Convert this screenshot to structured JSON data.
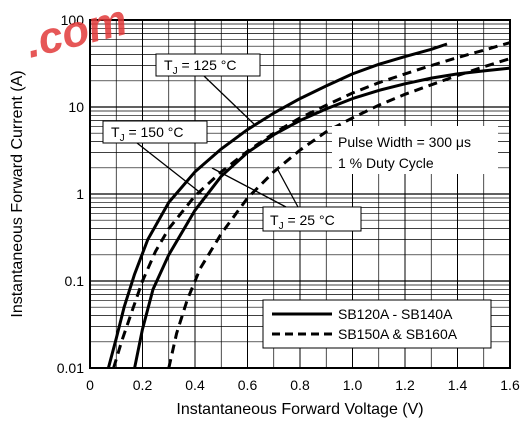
{
  "watermark": ".com",
  "chart_data": {
    "type": "line",
    "title": "",
    "xlabel": "Instantaneous Forward Voltage (V)",
    "ylabel": "Instantaneous Forward Current (A)",
    "xlim": [
      0,
      1.6
    ],
    "ylim": [
      0.01,
      100
    ],
    "y_scale": "log",
    "grid": true,
    "x_ticks": [
      "0",
      "0.2",
      "0.4",
      "0.6",
      "0.8",
      "1.0",
      "1.2",
      "1.4",
      "1.6"
    ],
    "y_ticks": [
      "0.01",
      "0.1",
      "1",
      "10",
      "100"
    ],
    "legend_position": "bottom-right",
    "series": [
      {
        "name": "SB120A - SB140A",
        "style": "solid",
        "condition": "T_J = 125 °C",
        "x": [
          0.07,
          0.1,
          0.13,
          0.17,
          0.22,
          0.3,
          0.4,
          0.5,
          0.6,
          0.7,
          0.8,
          0.9,
          1.0,
          1.1,
          1.2,
          1.3,
          1.36
        ],
        "y": [
          0.01,
          0.022,
          0.05,
          0.12,
          0.3,
          0.8,
          1.8,
          3.3,
          5.5,
          8.5,
          12.5,
          17.5,
          24,
          31,
          38,
          46,
          53
        ]
      },
      {
        "name": "SB120A - SB140A",
        "style": "solid",
        "condition": "T_J = 25 °C",
        "x": [
          0.17,
          0.2,
          0.24,
          0.3,
          0.4,
          0.5,
          0.6,
          0.7,
          0.8,
          0.9,
          1.0,
          1.1,
          1.2,
          1.3,
          1.4,
          1.5,
          1.6
        ],
        "y": [
          0.01,
          0.028,
          0.08,
          0.2,
          0.65,
          1.6,
          3.0,
          4.8,
          7.0,
          9.5,
          12.5,
          15.5,
          18.5,
          21.5,
          24,
          26,
          28
        ]
      },
      {
        "name": "SB150A & SB160A",
        "style": "dashed",
        "condition": "T_J = 150 °C",
        "x": [
          0.09,
          0.12,
          0.16,
          0.2,
          0.25,
          0.3,
          0.4,
          0.5,
          0.6,
          0.7,
          0.8,
          0.9,
          1.0,
          1.1,
          1.2,
          1.3,
          1.4,
          1.5,
          1.6
        ],
        "y": [
          0.01,
          0.02,
          0.045,
          0.1,
          0.22,
          0.4,
          0.95,
          1.8,
          3.1,
          5.0,
          7.5,
          10.5,
          14.5,
          19,
          24,
          30,
          37,
          45,
          55
        ]
      },
      {
        "name": "SB150A & SB160A",
        "style": "dashed",
        "condition": "T_J = 25 °C",
        "x": [
          0.3,
          0.33,
          0.37,
          0.42,
          0.5,
          0.6,
          0.7,
          0.8,
          0.9,
          1.0,
          1.1,
          1.2,
          1.3,
          1.4,
          1.5,
          1.6
        ],
        "y": [
          0.01,
          0.025,
          0.06,
          0.14,
          0.35,
          0.9,
          1.8,
          3.2,
          5.2,
          7.5,
          10.5,
          14,
          18,
          23,
          29,
          36
        ]
      }
    ],
    "annotations": {
      "tj125": "T_J = 125 °C",
      "tj150": "T_J = 150 °C",
      "tj25": "T_J = 25 °C",
      "pulse_width": "Pulse Width = 300 μs",
      "duty_cycle": "1 % Duty Cycle"
    }
  }
}
